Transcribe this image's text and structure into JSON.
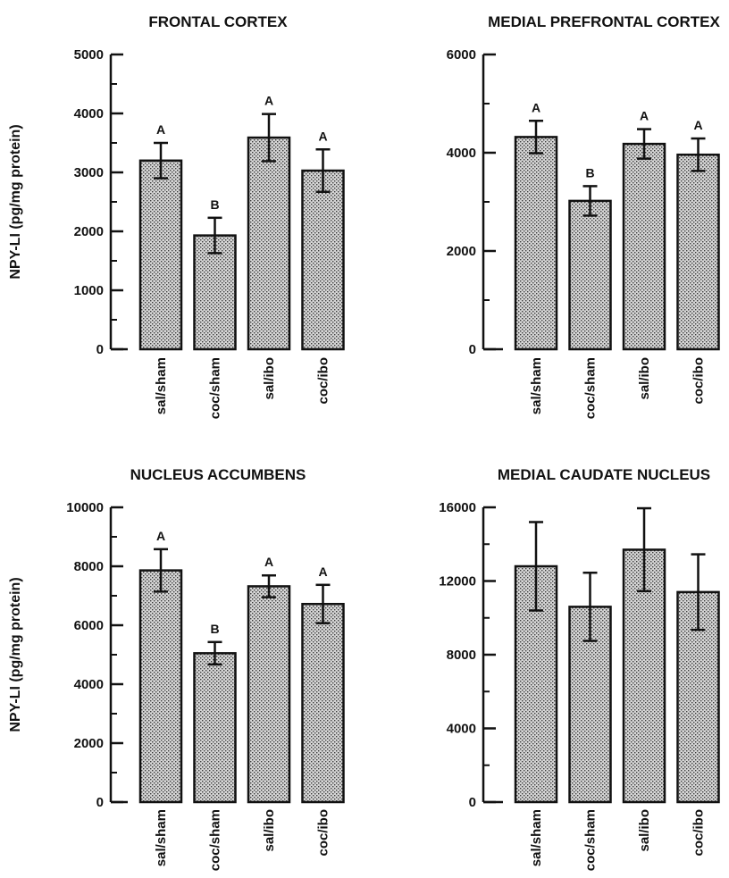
{
  "chart_data": [
    {
      "type": "bar",
      "title": "FRONTAL CORTEX",
      "ylabel": "NPY-LI (pg/mg protein)",
      "categories": [
        "sal/sham",
        "coc/sham",
        "sal/ibo",
        "coc/ibo"
      ],
      "values": [
        3200,
        1930,
        3590,
        3030
      ],
      "errors": [
        300,
        300,
        400,
        360
      ],
      "letters": [
        "A",
        "B",
        "A",
        "A"
      ],
      "ylim": [
        0,
        5000
      ],
      "yticks": [
        0,
        1000,
        2000,
        3000,
        4000,
        5000
      ],
      "minor_step": 500
    },
    {
      "type": "bar",
      "title": "MEDIAL PREFRONTAL CORTEX",
      "ylabel": "",
      "categories": [
        "sal/sham",
        "coc/sham",
        "sal/ibo",
        "coc/ibo"
      ],
      "values": [
        4320,
        3020,
        4180,
        3960
      ],
      "errors": [
        330,
        300,
        300,
        330
      ],
      "letters": [
        "A",
        "B",
        "A",
        "A"
      ],
      "ylim": [
        0,
        6000
      ],
      "yticks": [
        0,
        2000,
        4000,
        6000
      ],
      "minor_step": 1000
    },
    {
      "type": "bar",
      "title": "NUCLEUS ACCUMBENS",
      "ylabel": "NPY-LI (pg/mg protein)",
      "categories": [
        "sal/sham",
        "coc/sham",
        "sal/ibo",
        "coc/ibo"
      ],
      "values": [
        7860,
        5050,
        7320,
        6720
      ],
      "errors": [
        720,
        380,
        370,
        650
      ],
      "letters": [
        "A",
        "B",
        "A",
        "A"
      ],
      "ylim": [
        0,
        10000
      ],
      "yticks": [
        0,
        2000,
        4000,
        6000,
        8000,
        10000
      ],
      "minor_step": 1000
    },
    {
      "type": "bar",
      "title": "MEDIAL CAUDATE NUCLEUS",
      "ylabel": "",
      "categories": [
        "sal/sham",
        "coc/sham",
        "sal/ibo",
        "coc/ibo"
      ],
      "values": [
        12800,
        10600,
        13700,
        11400
      ],
      "errors": [
        2400,
        1850,
        2250,
        2050
      ],
      "letters": [
        "",
        "",
        "",
        ""
      ],
      "ylim": [
        0,
        16000
      ],
      "yticks": [
        0,
        4000,
        8000,
        12000,
        16000
      ],
      "minor_step": 2000
    }
  ],
  "colors": {
    "bar_fill": "#c8c8c8",
    "ink": "#111111"
  }
}
